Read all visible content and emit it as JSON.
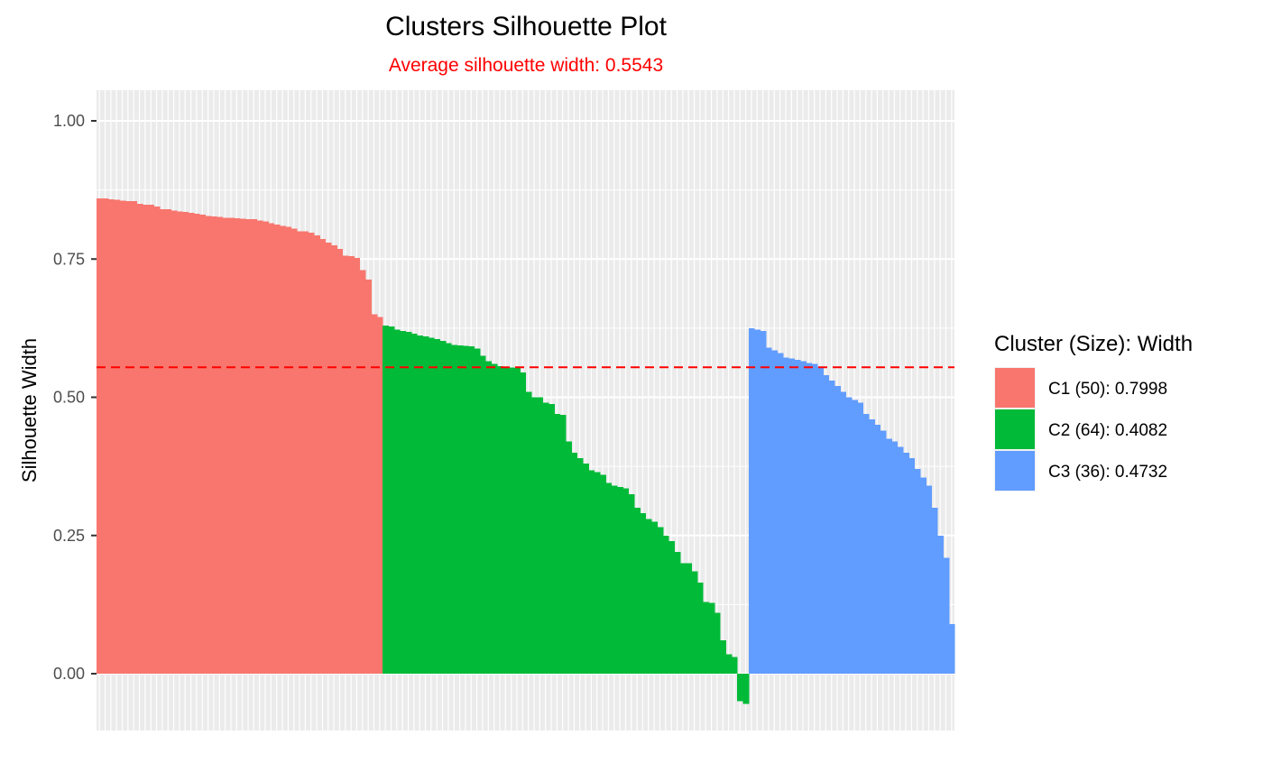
{
  "chart_data": {
    "type": "bar",
    "title": "Clusters Silhouette Plot",
    "subtitle": "Average silhouette width: 0.5543",
    "xlabel": "",
    "ylabel": "Silhouette Width",
    "ylim": [
      -0.1,
      1.05
    ],
    "y_ticks": [
      "0.00",
      "0.25",
      "0.50",
      "0.75",
      "1.00"
    ],
    "grid": true,
    "reference_line": {
      "value": 0.5543,
      "style": "dashed",
      "color": "#ff0000"
    },
    "legend": {
      "title": "Cluster (Size): Width",
      "position": "right",
      "entries": [
        {
          "label": "C1 (50): 0.7998",
          "color": "#F8766D"
        },
        {
          "label": "C2 (64): 0.4082",
          "color": "#00BA38"
        },
        {
          "label": "C3 (36): 0.4732",
          "color": "#619CFF"
        }
      ]
    },
    "series": [
      {
        "cluster": "C1",
        "color": "#F8766D",
        "values": [
          0.86,
          0.86,
          0.858,
          0.857,
          0.856,
          0.855,
          0.855,
          0.85,
          0.848,
          0.848,
          0.845,
          0.84,
          0.84,
          0.838,
          0.836,
          0.835,
          0.834,
          0.832,
          0.83,
          0.828,
          0.827,
          0.826,
          0.825,
          0.825,
          0.824,
          0.823,
          0.822,
          0.822,
          0.82,
          0.818,
          0.815,
          0.812,
          0.81,
          0.808,
          0.805,
          0.8,
          0.8,
          0.798,
          0.793,
          0.786,
          0.78,
          0.775,
          0.768,
          0.756,
          0.755,
          0.752,
          0.73,
          0.713,
          0.65,
          0.645
        ]
      },
      {
        "cluster": "C2",
        "color": "#00BA38",
        "values": [
          0.63,
          0.628,
          0.622,
          0.62,
          0.618,
          0.615,
          0.612,
          0.61,
          0.608,
          0.605,
          0.602,
          0.598,
          0.595,
          0.594,
          0.593,
          0.592,
          0.588,
          0.575,
          0.565,
          0.56,
          0.556,
          0.555,
          0.554,
          0.553,
          0.545,
          0.51,
          0.5,
          0.5,
          0.49,
          0.488,
          0.47,
          0.468,
          0.42,
          0.4,
          0.39,
          0.38,
          0.368,
          0.365,
          0.36,
          0.345,
          0.34,
          0.338,
          0.335,
          0.325,
          0.3,
          0.29,
          0.28,
          0.275,
          0.265,
          0.25,
          0.24,
          0.22,
          0.2,
          0.2,
          0.185,
          0.165,
          0.13,
          0.128,
          0.11,
          0.06,
          0.035,
          0.03,
          -0.05,
          -0.055
        ]
      },
      {
        "cluster": "C3",
        "color": "#619CFF",
        "values": [
          0.625,
          0.622,
          0.62,
          0.59,
          0.585,
          0.58,
          0.572,
          0.57,
          0.568,
          0.565,
          0.562,
          0.56,
          0.555,
          0.54,
          0.53,
          0.52,
          0.51,
          0.5,
          0.495,
          0.49,
          0.47,
          0.46,
          0.45,
          0.44,
          0.425,
          0.42,
          0.41,
          0.4,
          0.39,
          0.37,
          0.355,
          0.34,
          0.3,
          0.25,
          0.21,
          0.09
        ]
      }
    ]
  }
}
